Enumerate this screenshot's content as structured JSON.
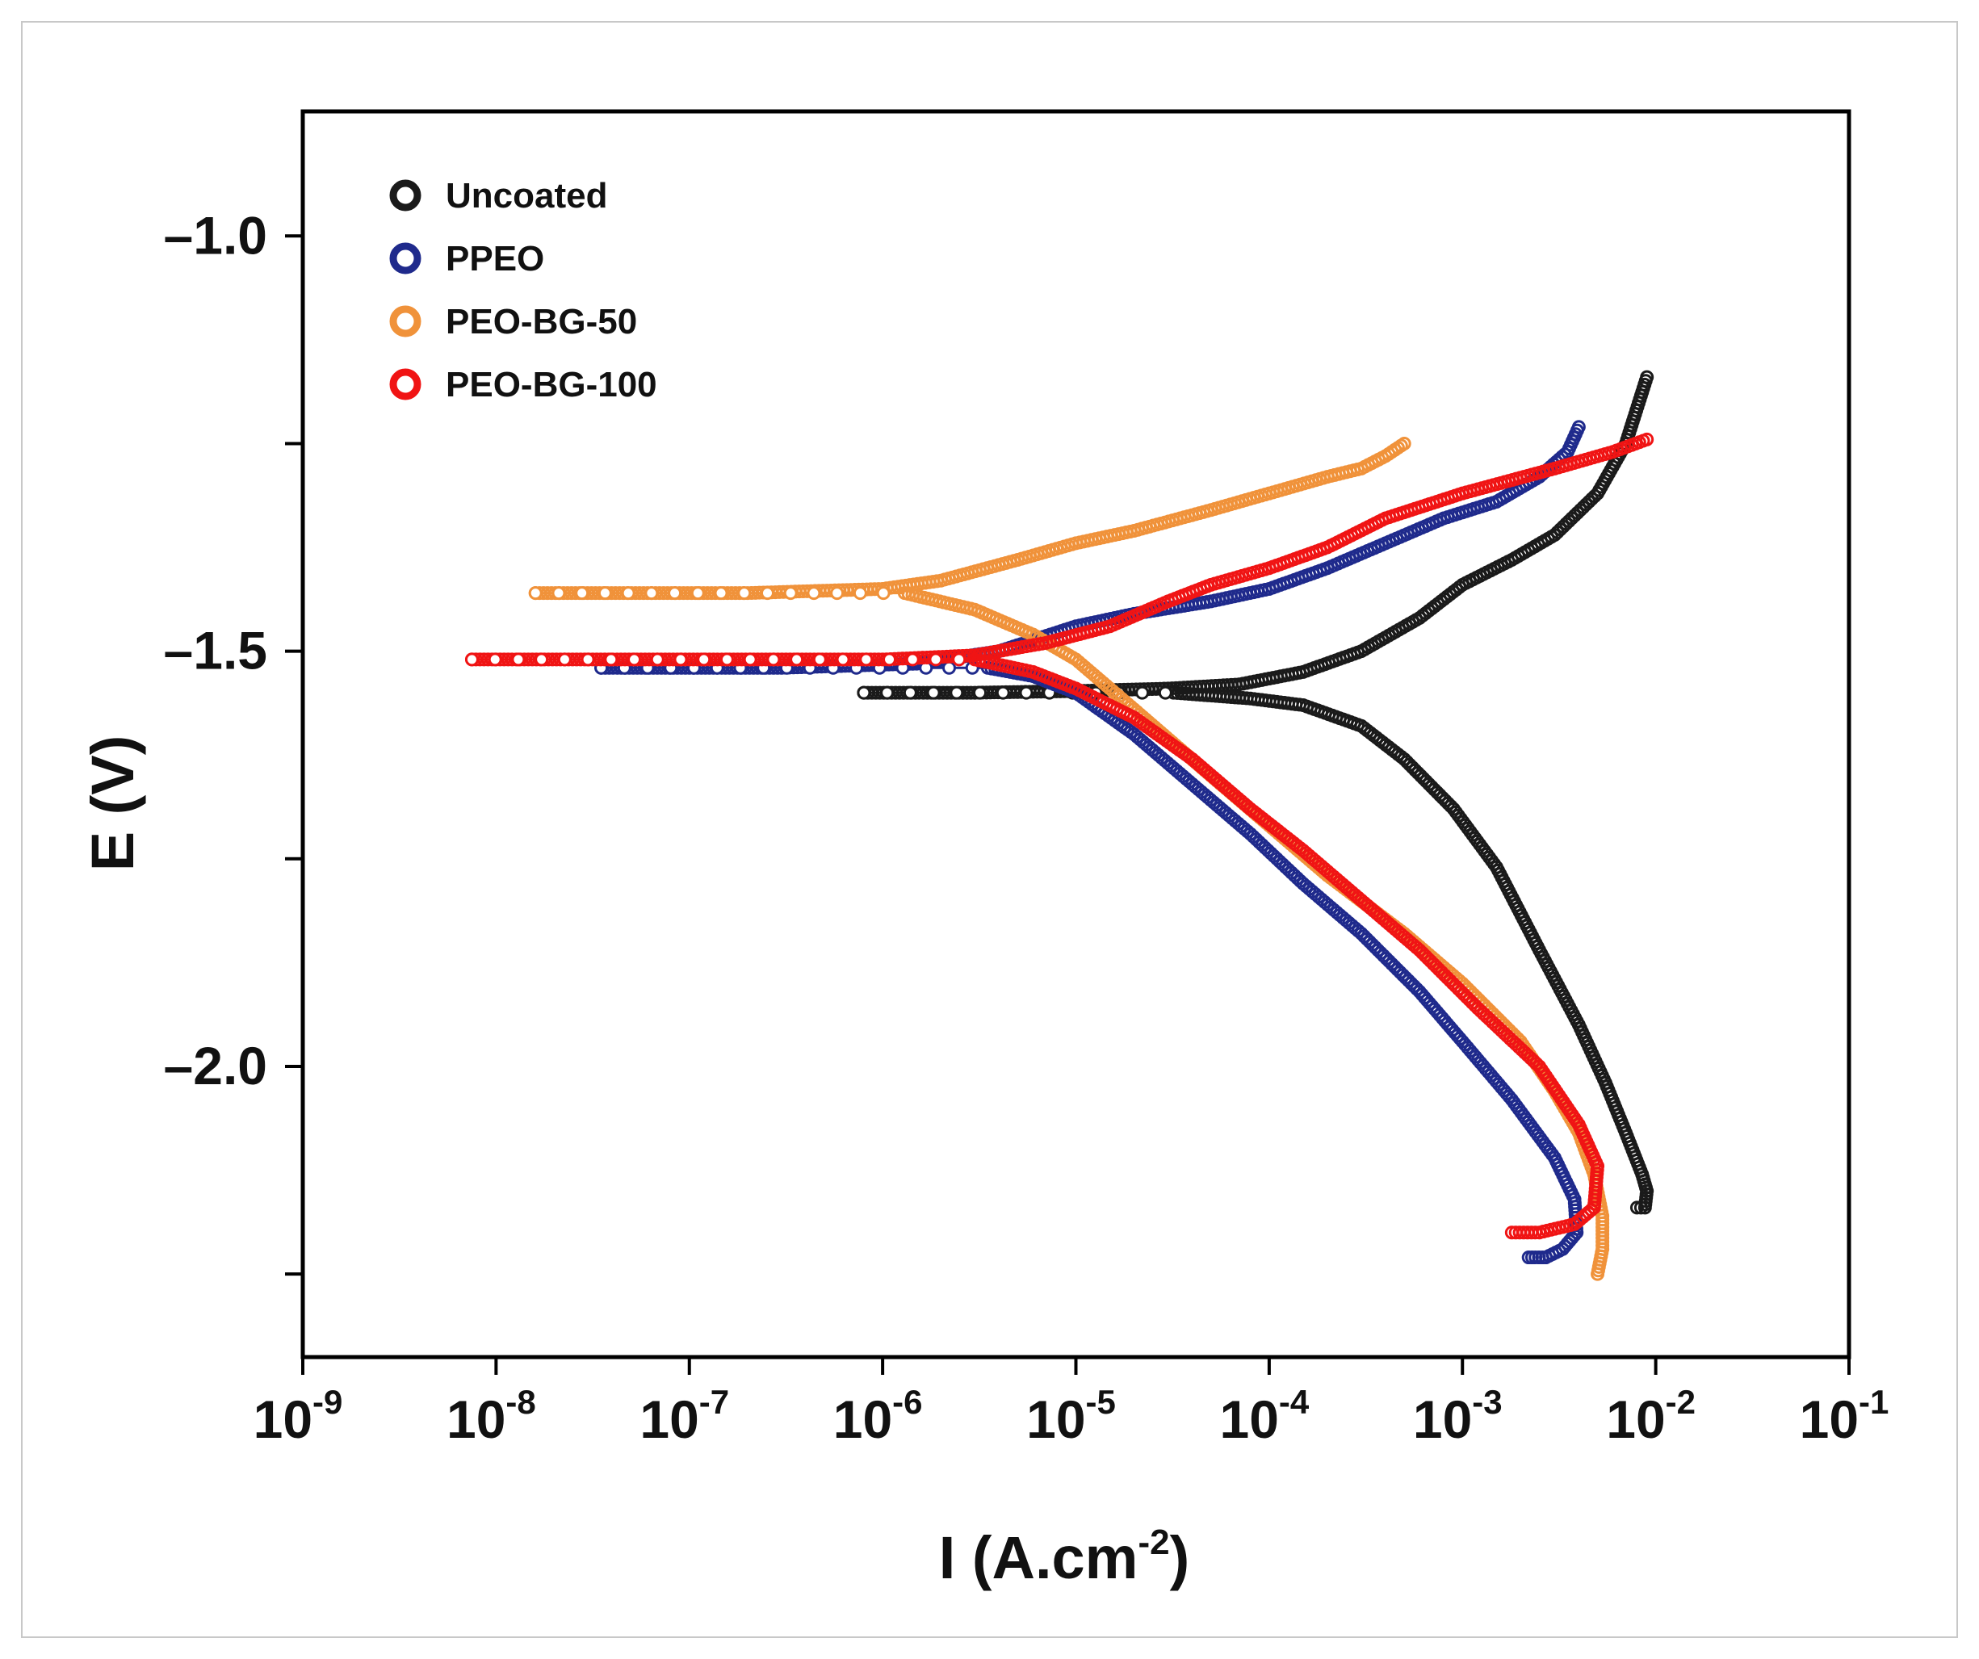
{
  "chart_data": {
    "type": "scatter",
    "title": "",
    "xlabel": "I (A.cm-2)",
    "xlabel_parts": {
      "base": "I (A.cm",
      "sup": "-2",
      "close": ")"
    },
    "ylabel": "E (V)",
    "xscale": "log",
    "xlim": [
      1e-09,
      0.1
    ],
    "ylim": [
      -2.35,
      -0.85
    ],
    "x_ticks": [
      {
        "base": "10",
        "exp": "-9"
      },
      {
        "base": "10",
        "exp": "-8"
      },
      {
        "base": "10",
        "exp": "-7"
      },
      {
        "base": "10",
        "exp": "-6"
      },
      {
        "base": "10",
        "exp": "-5"
      },
      {
        "base": "10",
        "exp": "-4"
      },
      {
        "base": "10",
        "exp": "-3"
      },
      {
        "base": "10",
        "exp": "-2"
      },
      {
        "base": "10",
        "exp": "-1"
      }
    ],
    "y_ticks": [
      {
        "value": -1.0,
        "label": "–1.0"
      },
      {
        "value": -1.25,
        "label": ""
      },
      {
        "value": -1.5,
        "label": "–1.5"
      },
      {
        "value": -1.75,
        "label": ""
      },
      {
        "value": -2.0,
        "label": "–2.0"
      },
      {
        "value": -2.25,
        "label": ""
      }
    ],
    "legend_position": "top-left",
    "series": [
      {
        "name": "Uncoated",
        "color": "#1a1a1a",
        "icorr": 3.2e-05,
        "anodic": [
          [
            8e-07,
            -1.55
          ],
          [
            3e-06,
            -1.55
          ],
          [
            1e-05,
            -1.548
          ],
          [
            3e-05,
            -1.545
          ],
          [
            7e-05,
            -1.54
          ],
          [
            0.00015,
            -1.525
          ],
          [
            0.0003,
            -1.5
          ],
          [
            0.0006,
            -1.46
          ],
          [
            0.001,
            -1.42
          ],
          [
            0.0018,
            -1.39
          ],
          [
            0.003,
            -1.36
          ],
          [
            0.005,
            -1.31
          ],
          [
            0.007,
            -1.25
          ],
          [
            0.009,
            -1.17
          ]
        ],
        "cathodic": [
          [
            3.2e-05,
            -1.55
          ],
          [
            8e-05,
            -1.557
          ],
          [
            0.00015,
            -1.565
          ],
          [
            0.0003,
            -1.59
          ],
          [
            0.0005,
            -1.63
          ],
          [
            0.0009,
            -1.69
          ],
          [
            0.0015,
            -1.76
          ],
          [
            0.0025,
            -1.86
          ],
          [
            0.004,
            -1.95
          ],
          [
            0.0055,
            -2.02
          ],
          [
            0.007,
            -2.08
          ],
          [
            0.0085,
            -2.13
          ],
          [
            0.009,
            -2.15
          ],
          [
            0.0088,
            -2.17
          ],
          [
            0.008,
            -2.17
          ]
        ]
      },
      {
        "name": "PPEO",
        "color": "#1f2a8c",
        "icorr": 3.5e-06,
        "anodic": [
          [
            3.5e-08,
            -1.52
          ],
          [
            3e-07,
            -1.52
          ],
          [
            1.5e-06,
            -1.515
          ],
          [
            4e-06,
            -1.5
          ],
          [
            1e-05,
            -1.47
          ],
          [
            2e-05,
            -1.455
          ],
          [
            5e-05,
            -1.44
          ],
          [
            0.0001,
            -1.425
          ],
          [
            0.0002,
            -1.4
          ],
          [
            0.0004,
            -1.37
          ],
          [
            0.0008,
            -1.34
          ],
          [
            0.0015,
            -1.32
          ],
          [
            0.0025,
            -1.29
          ],
          [
            0.0035,
            -1.26
          ],
          [
            0.004,
            -1.23
          ]
        ],
        "cathodic": [
          [
            3.5e-06,
            -1.52
          ],
          [
            6e-06,
            -1.53
          ],
          [
            1e-05,
            -1.55
          ],
          [
            2e-05,
            -1.6
          ],
          [
            4e-05,
            -1.66
          ],
          [
            8e-05,
            -1.72
          ],
          [
            0.00015,
            -1.78
          ],
          [
            0.0003,
            -1.84
          ],
          [
            0.0006,
            -1.91
          ],
          [
            0.001,
            -1.97
          ],
          [
            0.0018,
            -2.04
          ],
          [
            0.003,
            -2.11
          ],
          [
            0.0038,
            -2.16
          ],
          [
            0.0039,
            -2.2
          ],
          [
            0.0033,
            -2.22
          ],
          [
            0.0027,
            -2.23
          ],
          [
            0.0022,
            -2.23
          ]
        ]
      },
      {
        "name": "PEO-BG-50",
        "color": "#f0923a",
        "icorr": 1.3e-06,
        "anodic": [
          [
            1.6e-08,
            -1.43
          ],
          [
            2e-07,
            -1.43
          ],
          [
            1e-06,
            -1.425
          ],
          [
            2e-06,
            -1.415
          ],
          [
            5e-06,
            -1.39
          ],
          [
            1e-05,
            -1.37
          ],
          [
            2e-05,
            -1.355
          ],
          [
            5e-05,
            -1.33
          ],
          [
            0.0001,
            -1.31
          ],
          [
            0.0002,
            -1.29
          ],
          [
            0.0003,
            -1.28
          ],
          [
            0.0004,
            -1.265
          ],
          [
            0.0005,
            -1.25
          ]
        ],
        "cathodic": [
          [
            1.3e-06,
            -1.43
          ],
          [
            3e-06,
            -1.45
          ],
          [
            6e-06,
            -1.48
          ],
          [
            1e-05,
            -1.51
          ],
          [
            2e-05,
            -1.57
          ],
          [
            5e-05,
            -1.65
          ],
          [
            0.0001,
            -1.71
          ],
          [
            0.0002,
            -1.77
          ],
          [
            0.0005,
            -1.84
          ],
          [
            0.001,
            -1.9
          ],
          [
            0.002,
            -1.97
          ],
          [
            0.003,
            -2.03
          ],
          [
            0.004,
            -2.08
          ],
          [
            0.0048,
            -2.13
          ],
          [
            0.0053,
            -2.18
          ],
          [
            0.0053,
            -2.22
          ],
          [
            0.005,
            -2.25
          ]
        ]
      },
      {
        "name": "PEO-BG-100",
        "color": "#f01414",
        "icorr": 3e-06,
        "anodic": [
          [
            7.5e-09,
            -1.51
          ],
          [
            1e-07,
            -1.51
          ],
          [
            1e-06,
            -1.51
          ],
          [
            3e-06,
            -1.505
          ],
          [
            7e-06,
            -1.49
          ],
          [
            1.5e-05,
            -1.47
          ],
          [
            3e-05,
            -1.44
          ],
          [
            5e-05,
            -1.42
          ],
          [
            0.0001,
            -1.4
          ],
          [
            0.0002,
            -1.375
          ],
          [
            0.0004,
            -1.34
          ],
          [
            0.001,
            -1.31
          ],
          [
            0.003,
            -1.28
          ],
          [
            0.006,
            -1.26
          ],
          [
            0.009,
            -1.245
          ]
        ],
        "cathodic": [
          [
            3e-06,
            -1.51
          ],
          [
            6e-06,
            -1.525
          ],
          [
            1e-05,
            -1.545
          ],
          [
            2e-05,
            -1.58
          ],
          [
            4e-05,
            -1.63
          ],
          [
            8e-05,
            -1.69
          ],
          [
            0.00015,
            -1.74
          ],
          [
            0.0003,
            -1.8
          ],
          [
            0.0006,
            -1.86
          ],
          [
            0.0012,
            -1.93
          ],
          [
            0.0025,
            -2.0
          ],
          [
            0.004,
            -2.07
          ],
          [
            0.005,
            -2.12
          ],
          [
            0.0048,
            -2.17
          ],
          [
            0.0038,
            -2.19
          ],
          [
            0.0025,
            -2.2
          ],
          [
            0.0018,
            -2.2
          ]
        ]
      }
    ]
  }
}
